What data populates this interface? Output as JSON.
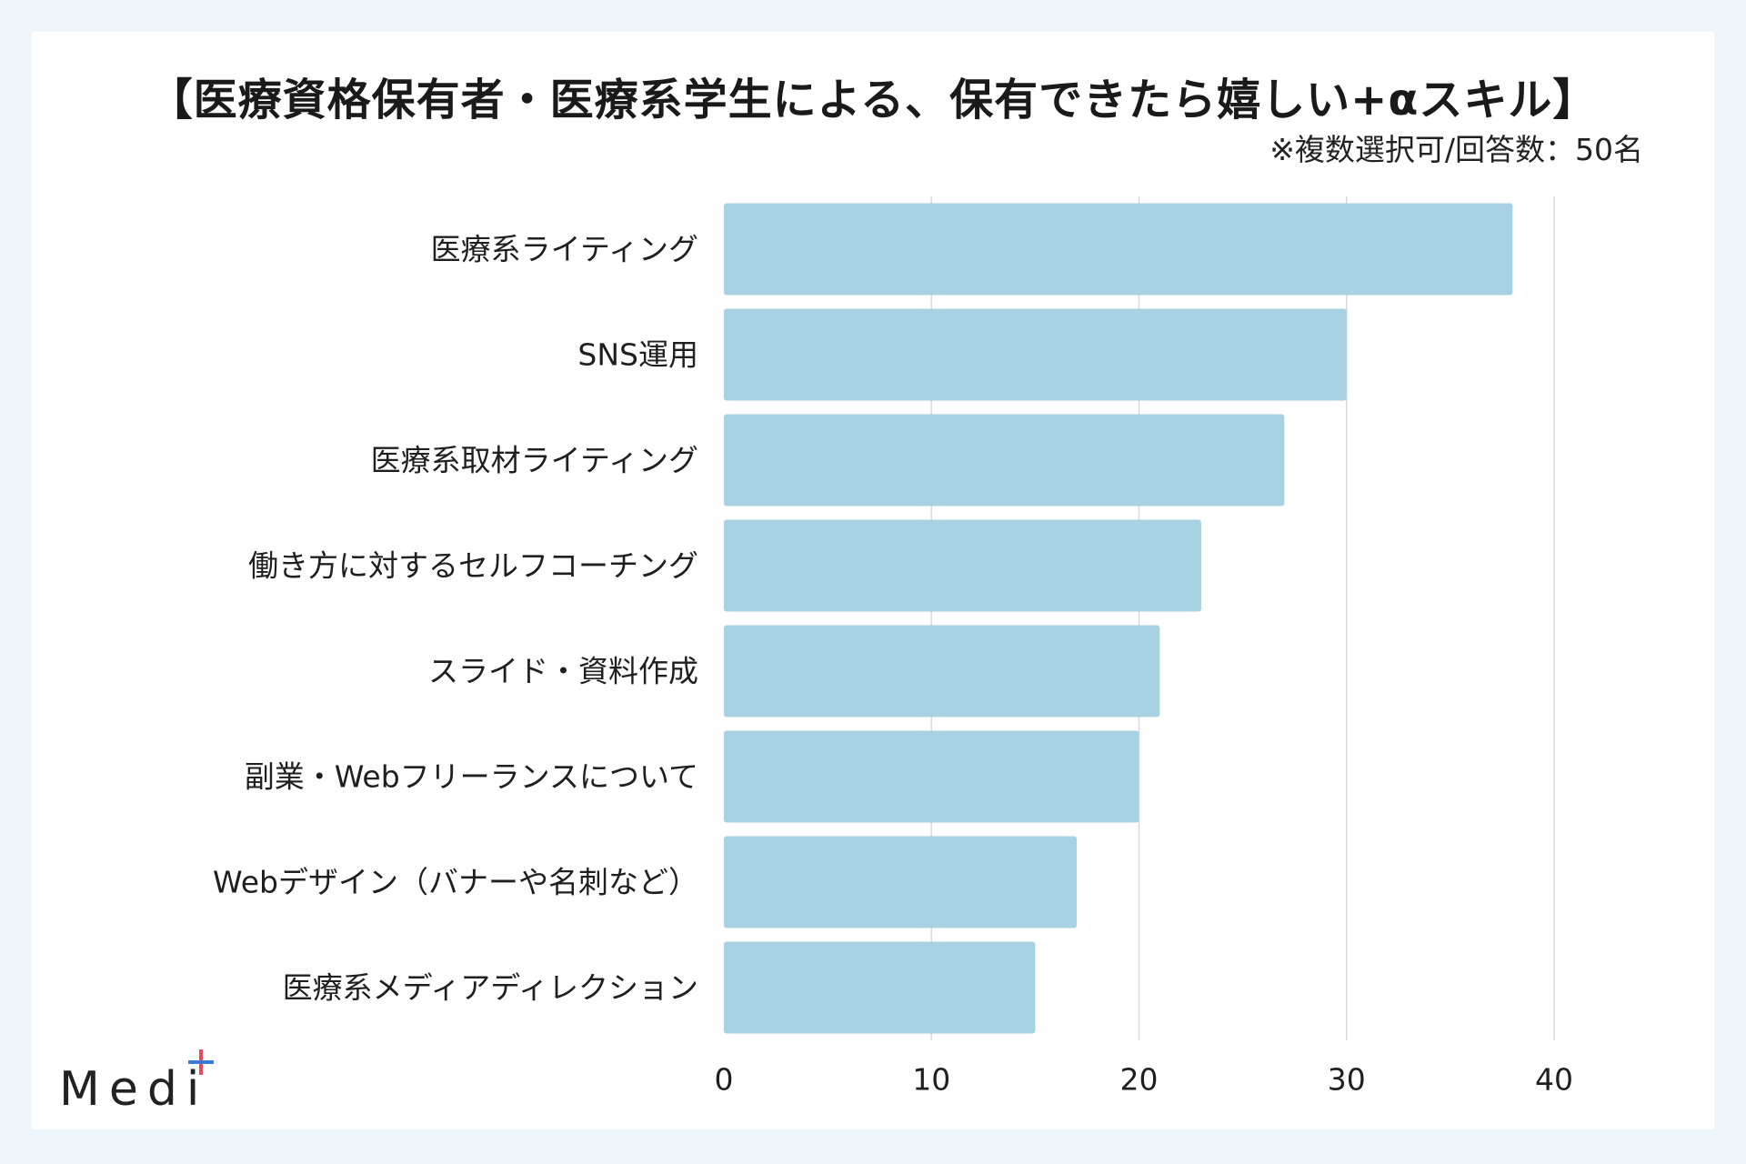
{
  "title": "【医療資格保有者・医療系学生による、保有できたら嬉しい+αスキル】",
  "note": "※複数選択可/回答数：50名",
  "logo": {
    "text": "Medi",
    "plus_colors": [
      "#e84a5f",
      "#3a7bd5"
    ]
  },
  "chart_data": {
    "type": "bar",
    "orientation": "horizontal",
    "categories": [
      "医療系ライティング",
      "SNS運用",
      "医療系取材ライティング",
      "働き方に対するセルフコーチング",
      "スライド・資料作成",
      "副業・Webフリーランスについて",
      "Webデザイン（バナーや名刺など）",
      "医療系メディアディレクション"
    ],
    "values": [
      38,
      30,
      27,
      23,
      21,
      20,
      17,
      15
    ],
    "xlim": [
      0,
      40
    ],
    "xticks": [
      "0",
      "10",
      "20",
      "30",
      "40"
    ],
    "grid": true,
    "bar_color": "#a8d1e1",
    "grid_color": "#d9d9d9"
  }
}
